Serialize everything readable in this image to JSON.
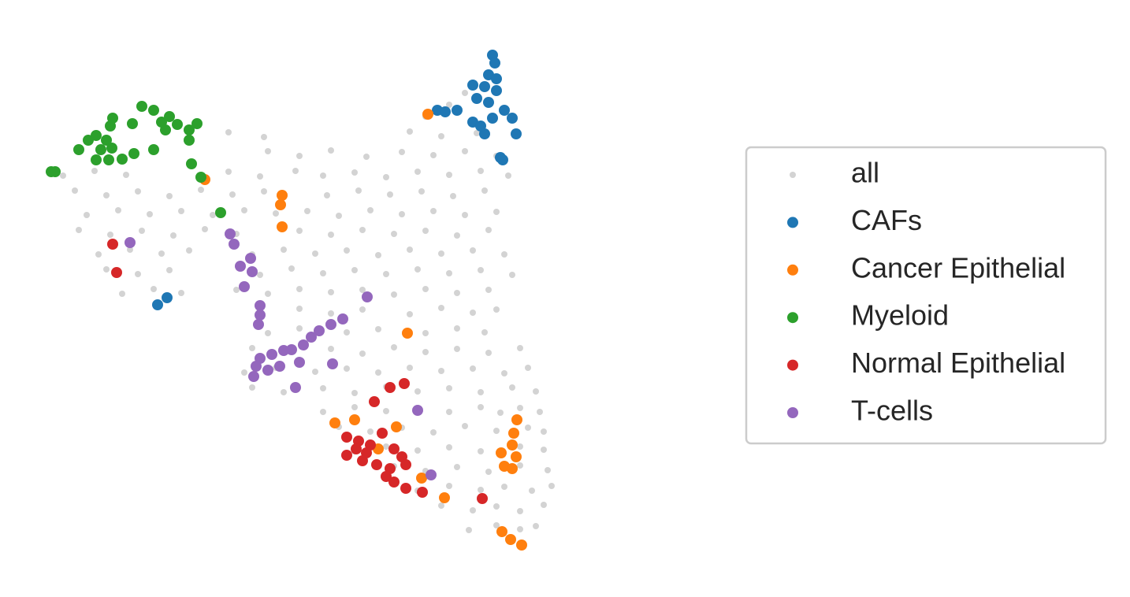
{
  "chart_data": {
    "type": "scatter",
    "legend": "right",
    "xlim": [
      5,
      72
    ],
    "ylim": [
      2,
      72
    ],
    "series": [
      {
        "name": "all",
        "color": "#d3d3d3",
        "x": [
          29,
          33.5,
          52,
          56,
          60.5,
          34,
          38,
          42,
          46.5,
          51,
          55,
          59,
          63,
          8,
          12,
          16,
          29,
          33,
          37.5,
          41,
          45,
          49,
          53,
          57,
          61,
          64.5,
          9.5,
          13.5,
          17.5,
          21.5,
          25.5,
          29.5,
          33.5,
          41.5,
          45.5,
          49.5,
          53.5,
          57.5,
          61.5,
          11,
          15,
          19,
          23,
          27,
          31,
          35,
          39,
          43,
          47,
          51,
          55,
          59,
          63,
          10,
          14,
          18,
          22,
          26,
          30,
          38,
          42,
          46,
          50,
          54,
          58,
          62,
          12.5,
          16.5,
          20.5,
          24,
          32,
          36,
          40,
          44,
          48,
          52,
          56,
          60,
          64,
          13.5,
          17.5,
          21.5,
          33,
          37,
          41,
          45,
          49,
          53,
          57,
          61,
          65,
          15.5,
          19.5,
          23,
          30,
          34,
          38,
          42,
          46,
          50,
          54,
          58,
          62,
          38,
          42,
          46,
          52,
          56,
          60,
          63,
          34,
          38,
          44,
          48,
          54,
          58,
          61.5,
          32,
          36,
          42,
          46,
          50,
          54,
          58,
          62,
          66,
          31,
          35,
          40,
          44,
          48,
          52,
          56,
          60,
          64,
          67,
          32,
          36,
          41,
          45,
          49,
          53,
          57,
          61,
          65,
          68,
          41,
          45,
          49,
          53,
          57,
          61,
          63.5,
          66,
          68.5,
          43,
          47,
          51,
          55,
          59,
          63,
          67,
          69,
          45,
          49,
          53,
          57,
          61,
          66,
          69,
          50,
          54,
          58,
          62,
          66,
          69.5,
          53,
          57,
          61,
          64,
          67.5,
          70,
          56,
          60,
          63,
          66,
          69,
          59.5,
          63,
          66,
          68,
          54,
          57,
          59
        ],
        "y": [
          58.5,
          57.9,
          58.6,
          58.0,
          58.4,
          56.1,
          55.5,
          56.2,
          55.4,
          56.0,
          55.6,
          56.1,
          55.5,
          53.0,
          53.6,
          53.1,
          53.5,
          52.9,
          53.6,
          53.0,
          53.4,
          52.8,
          53.5,
          53.1,
          53.6,
          53.0,
          51.1,
          50.5,
          51.0,
          50.4,
          51.2,
          50.6,
          51.0,
          50.5,
          51.1,
          50.6,
          51.0,
          50.4,
          51.1,
          48.0,
          48.6,
          48.1,
          48.5,
          48.0,
          48.6,
          48.2,
          48.5,
          47.9,
          48.6,
          48.1,
          48.5,
          48.0,
          48.4,
          46.1,
          45.5,
          46.0,
          45.4,
          46.2,
          45.6,
          46.0,
          45.5,
          46.1,
          45.6,
          46.0,
          45.4,
          46.1,
          43.0,
          43.6,
          43.1,
          43.5,
          43.0,
          43.6,
          43.1,
          43.5,
          42.9,
          43.6,
          43.1,
          43.5,
          43.0,
          41.1,
          40.5,
          41.0,
          40.4,
          41.2,
          40.6,
          41.0,
          40.5,
          41.1,
          40.6,
          41.0,
          40.4,
          38.0,
          38.6,
          38.1,
          38.5,
          38.0,
          38.6,
          38.2,
          38.5,
          37.9,
          38.6,
          38.1,
          38.5,
          36.1,
          35.5,
          36.0,
          35.4,
          36.2,
          35.6,
          36.0,
          33.0,
          33.6,
          33.1,
          33.5,
          33.0,
          33.6,
          33.1,
          31.1,
          30.5,
          31.0,
          30.4,
          31.2,
          30.6,
          31.0,
          30.5,
          31.1,
          28.0,
          28.6,
          28.1,
          28.5,
          28.0,
          28.6,
          28.2,
          28.5,
          27.9,
          28.6,
          26.1,
          25.5,
          26.0,
          25.4,
          26.2,
          25.6,
          26.0,
          25.5,
          26.1,
          25.6,
          23.0,
          23.6,
          23.1,
          23.5,
          23.0,
          23.6,
          22.9,
          23.5,
          23.0,
          21.1,
          20.5,
          21.0,
          20.4,
          21.2,
          20.6,
          21.0,
          20.5,
          18.0,
          18.6,
          18.1,
          18.5,
          18.0,
          18.6,
          18.2,
          16.1,
          15.5,
          16.0,
          15.4,
          16.2,
          15.6,
          13.0,
          13.6,
          13.1,
          13.5,
          13.0,
          13.6,
          11.1,
          10.5,
          11.0,
          10.4,
          11.2,
          8.0,
          8.6,
          8.1,
          8.5,
          60.5,
          62,
          63.5
        ]
      },
      {
        "name": "CAFs",
        "color": "#1f77b4",
        "x": [
          62.5,
          62.8,
          62,
          60,
          61.5,
          63,
          60.5,
          62,
          64,
          55.5,
          56.5,
          58,
          60,
          62.5,
          65,
          65.5,
          61.5,
          61,
          63.5,
          63.8,
          20,
          21.2,
          63
        ],
        "y": [
          68.3,
          67.3,
          65.8,
          64.5,
          64.3,
          63.8,
          62.8,
          62.3,
          61.3,
          61.3,
          61.1,
          61.3,
          59.8,
          60.3,
          60.3,
          58.3,
          58.3,
          59.3,
          55.3,
          55,
          36.6,
          37.5,
          65.3
        ]
      },
      {
        "name": "Cancer Epithelial",
        "color": "#ff7f0e",
        "x": [
          54.3,
          26,
          35.8,
          35.6,
          35.8,
          51.7,
          42.5,
          45,
          50.3,
          65.6,
          65.2,
          65,
          63.6,
          65.5,
          64,
          65,
          53.5,
          56.4,
          63.7,
          64.8,
          66.2,
          48
        ],
        "y": [
          60.8,
          52.5,
          50.5,
          49.3,
          46.5,
          33,
          21.6,
          22,
          21.1,
          22,
          20.3,
          18.8,
          17.8,
          17.3,
          16.1,
          15.8,
          14.6,
          12.1,
          7.8,
          6.8,
          6.1,
          18.3
        ]
      },
      {
        "name": "Myeloid",
        "color": "#2ca02c",
        "x": [
          7,
          6.5,
          10,
          11.2,
          12.2,
          13.5,
          14.3,
          14,
          16.8,
          18,
          19.5,
          20.5,
          21.5,
          22.5,
          24,
          25,
          21,
          19.5,
          17,
          15.5,
          13.8,
          12.2,
          14.2,
          24.3,
          25.5,
          28,
          24,
          12.8
        ],
        "y": [
          53.5,
          53.5,
          56.3,
          57.5,
          58.1,
          57.5,
          60.3,
          59.3,
          59.6,
          61.8,
          61.3,
          59.8,
          60.5,
          59.5,
          58.8,
          59.6,
          58.8,
          56.3,
          55.8,
          55.1,
          55,
          55,
          56.5,
          54.5,
          52.8,
          48.3,
          57.5,
          56.3
        ]
      },
      {
        "name": "Normal Epithelial",
        "color": "#d62728",
        "x": [
          14.3,
          14.8,
          49.5,
          51.3,
          47.5,
          44,
          45.5,
          48.5,
          47,
          44,
          46,
          47.8,
          49.5,
          51,
          51.5,
          49,
          50,
          51.5,
          53.6,
          61.2,
          50,
          46.5,
          45.2
        ],
        "y": [
          44.3,
          40.7,
          26.1,
          26.6,
          24.3,
          19.8,
          19.3,
          20.3,
          18.8,
          17.5,
          16.8,
          16.3,
          15.8,
          17.3,
          16.3,
          14.8,
          14.1,
          13.3,
          12.8,
          12,
          18.3,
          17.8,
          18.3
        ]
      },
      {
        "name": "T-cells",
        "color": "#9467bd",
        "x": [
          16.5,
          29.2,
          29.7,
          31.8,
          30.5,
          32,
          31,
          33,
          33,
          32.8,
          46.6,
          43.5,
          42,
          40.5,
          39.5,
          38.5,
          37,
          36,
          34.5,
          33,
          32.5,
          34,
          35.5,
          38,
          32.2,
          37.5,
          42.2,
          53,
          54.7
        ],
        "y": [
          44.5,
          45.6,
          44.3,
          42.5,
          41.5,
          40.8,
          38.9,
          36.5,
          35.3,
          34.1,
          37.6,
          34.8,
          34.1,
          33.3,
          32.5,
          31.5,
          30.9,
          30.8,
          30.3,
          29.8,
          28.8,
          28.3,
          28.8,
          29.3,
          27.5,
          26.1,
          29.1,
          23.2,
          15
        ]
      }
    ]
  }
}
